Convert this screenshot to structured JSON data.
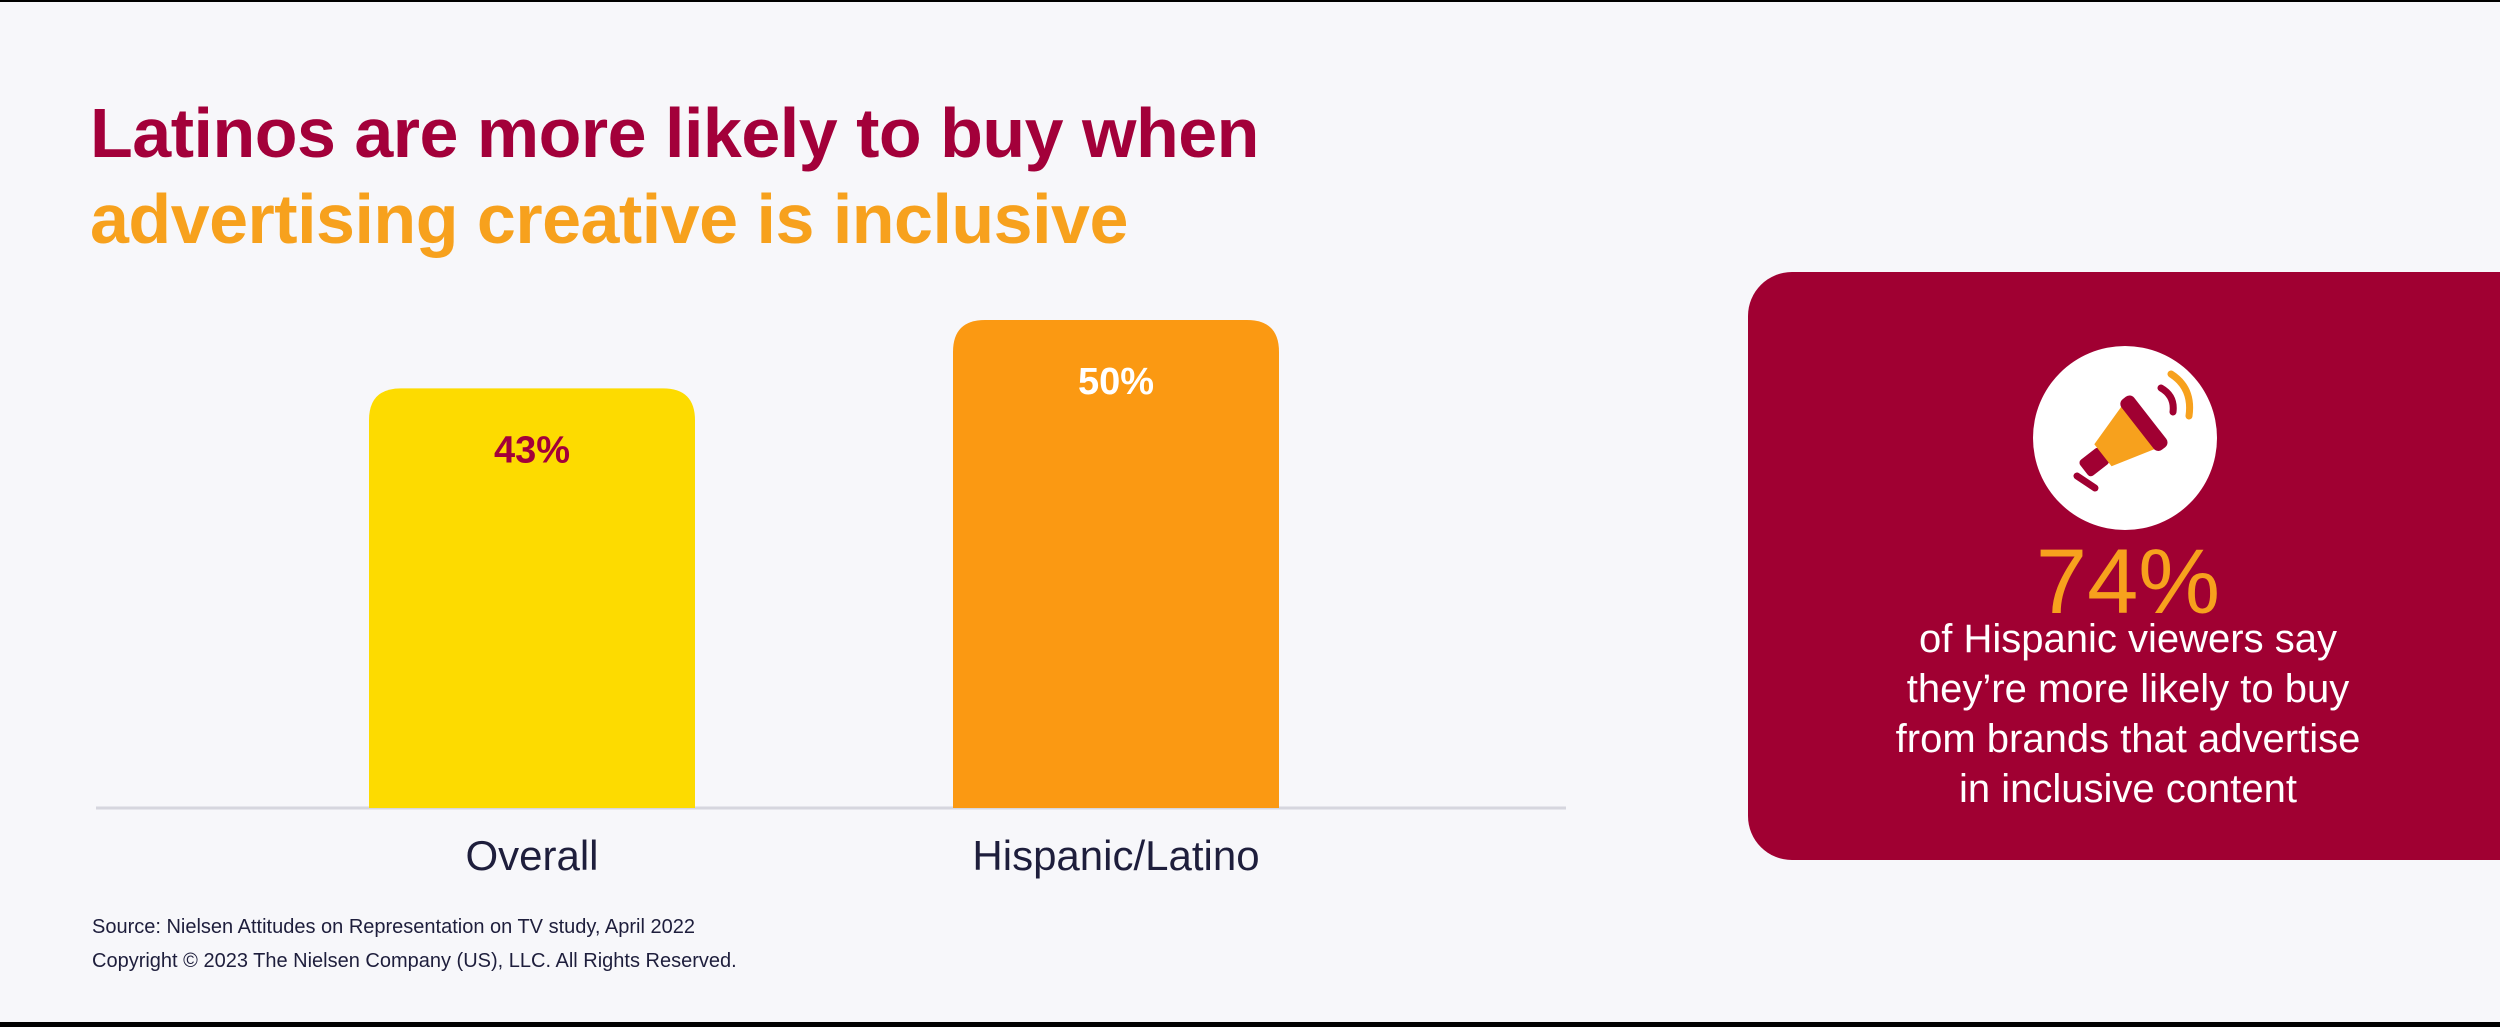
{
  "title": {
    "line1": "Latinos are more likely to buy when",
    "line2": "advertising creative is inclusive"
  },
  "chart_data": {
    "type": "bar",
    "categories": [
      "Overall",
      "Hispanic/Latino"
    ],
    "values": [
      43,
      50
    ],
    "value_labels": [
      "43%",
      "50%"
    ],
    "bar_colors": [
      "#fddb00",
      "#fb9912"
    ],
    "label_colors": [
      "#a3003a",
      "#ffffff"
    ],
    "ylim": [
      0,
      50
    ],
    "grid": false,
    "title": "",
    "xlabel": "",
    "ylabel": ""
  },
  "source": {
    "line1": "Source: Nielsen Attitudes on Representation on TV study, April 2022",
    "line2": "Copyright © 2023 The Nielsen Company (US), LLC. All Rights Reserved."
  },
  "callout": {
    "icon": "megaphone-icon",
    "stat": "74%",
    "text_lines": [
      "of Hispanic viewers say",
      "they’re more likely to buy",
      "from brands that advertise",
      "in inclusive content"
    ],
    "background": "#a00032",
    "stat_color": "#f7a11d"
  }
}
